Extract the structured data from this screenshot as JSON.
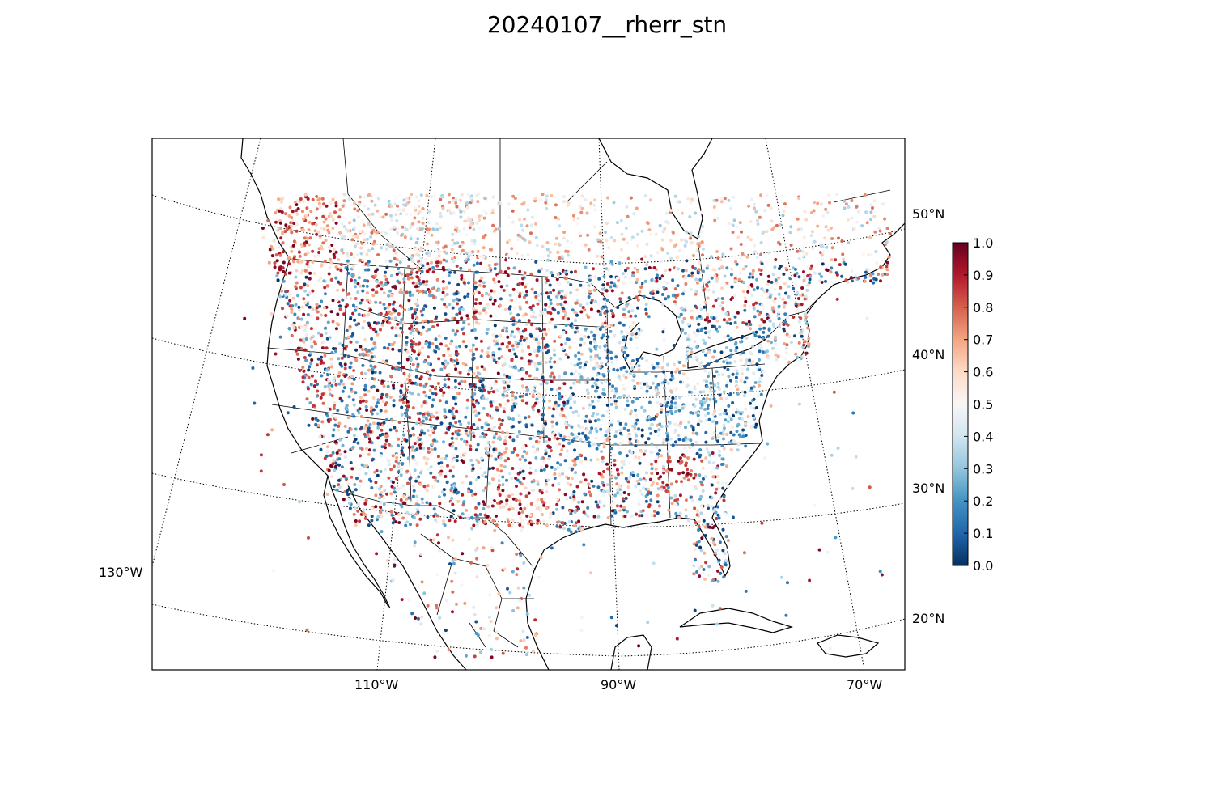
{
  "title": "20240107__rherr_stn",
  "map": {
    "projection": "lambert-conformal",
    "lat_labels": [
      "50°N",
      "40°N",
      "30°N",
      "20°N"
    ],
    "lon_labels": [
      "130°W",
      "110°W",
      "90°W",
      "70°W"
    ],
    "parallels": [
      20,
      30,
      40,
      50
    ],
    "meridians": [
      -130,
      -110,
      -90,
      -70
    ]
  },
  "colorbar": {
    "min": 0.0,
    "max": 1.0,
    "ticks": [
      "0.0",
      "0.1",
      "0.2",
      "0.3",
      "0.4",
      "0.5",
      "0.6",
      "0.7",
      "0.8",
      "0.9",
      "1.0"
    ],
    "colormap": "RdBu_r",
    "stops": [
      "#053061",
      "#2166ac",
      "#4393c3",
      "#92c5de",
      "#d1e5f0",
      "#f7f7f7",
      "#fddbc7",
      "#f4a582",
      "#d6604d",
      "#b2182b",
      "#67001f"
    ]
  },
  "stations": {
    "count_shown": 5200,
    "value_range": [
      0.0,
      1.0
    ]
  }
}
